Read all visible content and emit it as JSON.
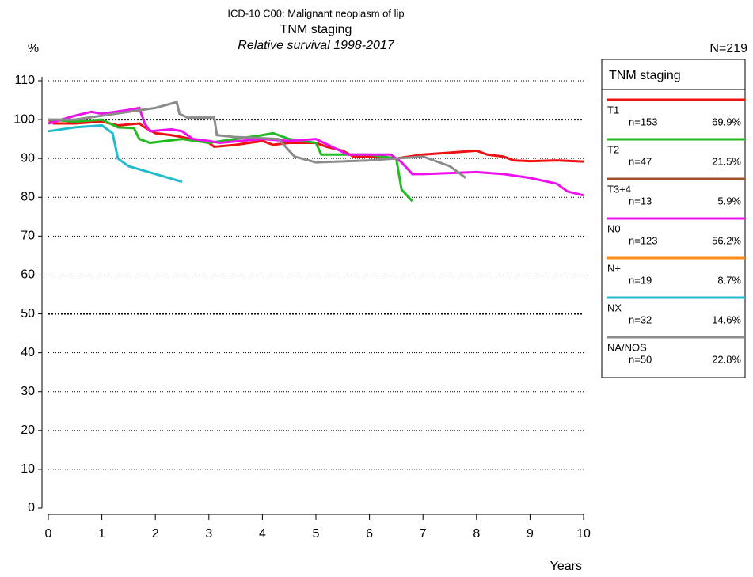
{
  "chart_data": {
    "type": "line",
    "title": "ICD-10 C00: Malignant neoplasm of lip",
    "subtitle": "TNM staging",
    "caption": "Relative survival 1998-2017",
    "y_label": "%",
    "x_label": "Years",
    "total": "N=219",
    "legend_title": "TNM staging",
    "xlim": [
      0,
      10
    ],
    "xticks": [
      0,
      1,
      2,
      3,
      4,
      5,
      6,
      7,
      8,
      9,
      10
    ],
    "ylim": [
      0,
      110
    ],
    "yticks": [
      0,
      10,
      20,
      30,
      40,
      50,
      60,
      70,
      80,
      90,
      100,
      110
    ],
    "grid": true,
    "series": [
      {
        "name": "T1",
        "color": "#ee1111",
        "n": "n=153",
        "share": "69.9%",
        "x": [
          0,
          0.1,
          0.5,
          1,
          1.3,
          1.7,
          1.8,
          2,
          2.3,
          2.5,
          3,
          3.1,
          3.5,
          4,
          4.2,
          4.5,
          5,
          5.2,
          5.5,
          5.7,
          6,
          6.5,
          7,
          7.5,
          8,
          8.2,
          8.5,
          8.7,
          9,
          9.5,
          10
        ],
        "values": [
          100,
          99,
          99,
          99.5,
          98.5,
          99,
          98,
          96.5,
          96,
          95.5,
          94,
          93,
          93.5,
          94.5,
          93.5,
          94,
          94,
          93,
          92,
          90.5,
          90.5,
          90,
          91,
          91.5,
          92,
          91,
          90.5,
          89.5,
          89.3,
          89.5,
          89.2
        ]
      },
      {
        "name": "T2",
        "color": "#22bb22",
        "n": "n=47",
        "share": "21.5%",
        "x": [
          0,
          0.5,
          1,
          1.3,
          1.6,
          1.7,
          1.9,
          2.5,
          3,
          3.5,
          4,
          4.2,
          4.5,
          5,
          5.1,
          5.5,
          6,
          6.5,
          6.6,
          6.8
        ],
        "values": [
          100,
          99.5,
          100,
          98,
          97.8,
          95,
          94,
          95,
          94,
          95,
          96,
          96.5,
          95,
          94,
          91,
          91,
          91,
          90,
          82,
          79
        ]
      },
      {
        "name": "T3+4",
        "color": "#a0522d",
        "n": "n=13",
        "share": "5.9%",
        "x": [],
        "values": []
      },
      {
        "name": "N0",
        "color": "#ee11ee",
        "n": "n=123",
        "share": "56.2%",
        "x": [
          0,
          0.5,
          0.8,
          1,
          1.5,
          1.7,
          1.8,
          1.9,
          2.3,
          2.5,
          2.7,
          3,
          3.2,
          4,
          4.5,
          5,
          5.3,
          5.6,
          6,
          6.4,
          6.6,
          6.8,
          7,
          8,
          8.5,
          9,
          9.5,
          9.7,
          10
        ],
        "values": [
          99,
          101,
          102,
          101.5,
          102.5,
          103,
          99,
          97,
          97.5,
          97,
          95,
          94.5,
          94,
          95,
          94.5,
          95,
          93,
          91,
          91,
          91,
          89,
          86,
          86,
          86.5,
          86,
          85,
          83.5,
          81.5,
          80.5
        ]
      },
      {
        "name": "N+",
        "color": "#ff8c1a",
        "n": "n=19",
        "share": "8.7%",
        "x": [],
        "values": []
      },
      {
        "name": "NX",
        "color": "#22bbcc",
        "n": "n=32",
        "share": "14.6%",
        "x": [
          0,
          0.5,
          1,
          1.2,
          1.3,
          1.5,
          2,
          2.5
        ],
        "values": [
          97,
          98,
          98.5,
          96.5,
          90,
          88,
          86,
          84
        ]
      },
      {
        "name": "NA/NOS",
        "color": "#8c8c8c",
        "n": "n=50",
        "share": "22.8%",
        "x": [
          0,
          0.5,
          1,
          1.5,
          2,
          2.4,
          2.45,
          2.6,
          3.1,
          3.15,
          3.5,
          4.3,
          4.6,
          5,
          6,
          6.5,
          7,
          7.5,
          7.8
        ],
        "values": [
          100,
          100,
          101,
          102,
          103,
          104.5,
          101.5,
          100.5,
          100.5,
          96,
          95.5,
          95,
          90.5,
          89,
          89.5,
          90,
          90.5,
          88,
          85
        ]
      }
    ]
  }
}
